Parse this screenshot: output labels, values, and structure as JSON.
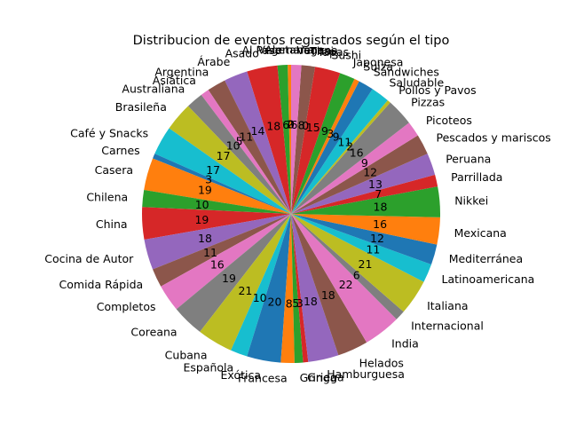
{
  "chart_data": {
    "type": "pie",
    "title": "Distribucion de eventos registrados según el tipo",
    "start_angle_deg": 90,
    "direction": "counterclockwise",
    "slices": [
      {
        "label": "Vegetariana",
        "value": 0
      },
      {
        "label": "Alemana",
        "value": 2
      },
      {
        "label": "Al Paso",
        "value": 6
      },
      {
        "label": "Asado",
        "value": 18
      },
      {
        "label": "Árabe",
        "value": 14
      },
      {
        "label": "Argentina",
        "value": 11
      },
      {
        "label": "Asiática",
        "value": 5
      },
      {
        "label": "Australiana",
        "value": 10
      },
      {
        "label": "Brasileña",
        "value": 17
      },
      {
        "label": "Café y Snacks",
        "value": 17
      },
      {
        "label": "Carnes",
        "value": 3
      },
      {
        "label": "Casera",
        "value": 19
      },
      {
        "label": "Chilena",
        "value": 10
      },
      {
        "label": "China",
        "value": 19
      },
      {
        "label": "Cocina de Autor",
        "value": 18
      },
      {
        "label": "Comida Rápida",
        "value": 11
      },
      {
        "label": "Completos",
        "value": 16
      },
      {
        "label": "Coreana",
        "value": 19
      },
      {
        "label": "Cubana",
        "value": 21
      },
      {
        "label": "Española",
        "value": 10
      },
      {
        "label": "Exótica",
        "value": 20
      },
      {
        "label": "Francesa",
        "value": 8
      },
      {
        "label": "Gringa",
        "value": 5
      },
      {
        "label": "Griega",
        "value": 3
      },
      {
        "label": "Hamburguesa",
        "value": 18
      },
      {
        "label": "Helados",
        "value": 18
      },
      {
        "label": "India",
        "value": 22
      },
      {
        "label": "Internacional",
        "value": 6
      },
      {
        "label": "Italiana",
        "value": 21
      },
      {
        "label": "Latinoamericana",
        "value": 11
      },
      {
        "label": "Mediterránea",
        "value": 12
      },
      {
        "label": "Mexicana",
        "value": 16
      },
      {
        "label": "Nikkei",
        "value": 18
      },
      {
        "label": "Parrillada",
        "value": 7
      },
      {
        "label": "Peruana",
        "value": 13
      },
      {
        "label": "Pescados y mariscos",
        "value": 12
      },
      {
        "label": "Picoteos",
        "value": 9
      },
      {
        "label": "Pizzas",
        "value": 16
      },
      {
        "label": "Pollos y Pavos",
        "value": 2
      },
      {
        "label": "Saludable",
        "value": 11
      },
      {
        "label": "Sándwiches",
        "value": 9
      },
      {
        "label": "Suiza",
        "value": 3
      },
      {
        "label": "Japonesa",
        "value": 9
      },
      {
        "label": "Sushi",
        "value": 15
      },
      {
        "label": "Tapas",
        "value": 0
      },
      {
        "label": "Thai",
        "value": 8
      },
      {
        "label": "Vegana",
        "value": 6
      }
    ],
    "colors": [
      "#1f77b4",
      "#ff7f0e",
      "#2ca02c",
      "#d62728",
      "#9467bd",
      "#8c564b",
      "#e377c2",
      "#7f7f7f",
      "#bcbd22",
      "#17becf"
    ]
  }
}
